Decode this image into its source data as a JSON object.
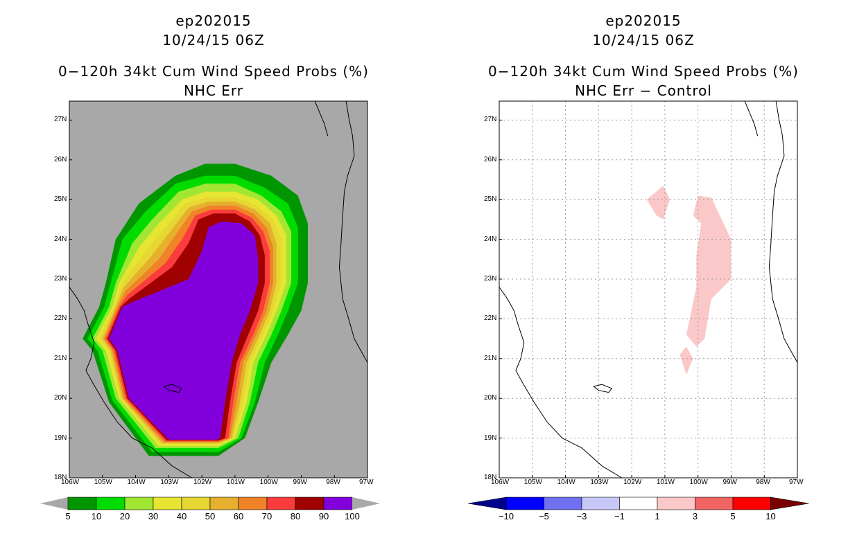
{
  "left_panel": {
    "title_line1": "ep202015",
    "title_line2": "10/24/15 06Z",
    "title_line3": "0−120h 34kt Cum Wind Speed Probs (%)",
    "title_line4": "NHC Err",
    "background_color": "#a8a8a8"
  },
  "right_panel": {
    "title_line1": "ep202015",
    "title_line2": "10/24/15 06Z",
    "title_line3": "0−120h 34kt Cum Wind Speed Probs (%)",
    "title_line4": "NHC Err − Control",
    "background_color": "#ffffff"
  },
  "axes": {
    "lat_labels": [
      "27N",
      "26N",
      "25N",
      "24N",
      "23N",
      "22N",
      "21N",
      "20N",
      "19N",
      "18N"
    ],
    "lon_labels": [
      "106W",
      "105W",
      "104W",
      "103W",
      "102W",
      "101W",
      "100W",
      "99W",
      "98W",
      "97W"
    ]
  },
  "left_colorbar": {
    "labels": [
      "5",
      "10",
      "20",
      "30",
      "40",
      "50",
      "60",
      "70",
      "80",
      "90",
      "100"
    ],
    "colors": [
      "#009600",
      "#00dc00",
      "#a0e632",
      "#e6e632",
      "#e6d732",
      "#e6af2d",
      "#f08228",
      "#fa3c3c",
      "#a00000",
      "#8200dc"
    ]
  },
  "right_colorbar": {
    "labels": [
      "−10",
      "−5",
      "−3",
      "−1",
      "1",
      "3",
      "5",
      "10"
    ],
    "colors": [
      "#00008c",
      "#0000ff",
      "#7070f0",
      "#c8c8f8",
      "#ffffff",
      "#fac8c8",
      "#f06464",
      "#ff0000",
      "#780000"
    ]
  },
  "chart_data": {
    "type": "heatmap",
    "map_extent": {
      "lon": [
        -106,
        -97
      ],
      "lat": [
        18,
        27.5
      ]
    },
    "left_field": {
      "name": "34kt cumulative wind speed probability (%)",
      "levels": [
        5,
        10,
        20,
        30,
        40,
        50,
        60,
        70,
        80,
        90,
        100
      ],
      "contours": [
        {
          "level": 5,
          "path": [
            [
              -104.6,
              24.0
            ],
            [
              -103.9,
              24.9
            ],
            [
              -102.8,
              25.6
            ],
            [
              -101.9,
              25.9
            ],
            [
              -101.0,
              25.9
            ],
            [
              -99.9,
              25.6
            ],
            [
              -99.1,
              25.1
            ],
            [
              -98.8,
              24.4
            ],
            [
              -98.8,
              22.9
            ],
            [
              -99.0,
              22.2
            ],
            [
              -99.4,
              21.6
            ],
            [
              -99.9,
              20.9
            ],
            [
              -100.3,
              19.9
            ],
            [
              -100.7,
              19.0
            ],
            [
              -101.5,
              18.55
            ],
            [
              -103.6,
              18.55
            ],
            [
              -104.8,
              19.9
            ],
            [
              -105.3,
              21.2
            ],
            [
              -105.6,
              21.5
            ],
            [
              -105.1,
              22.3
            ],
            [
              -104.9,
              22.9
            ]
          ]
        },
        {
          "level": 10,
          "path": [
            [
              -104.4,
              24.0
            ],
            [
              -103.7,
              24.7
            ],
            [
              -102.8,
              25.4
            ],
            [
              -101.9,
              25.6
            ],
            [
              -101.0,
              25.6
            ],
            [
              -100.1,
              25.3
            ],
            [
              -99.4,
              24.9
            ],
            [
              -99.1,
              24.3
            ],
            [
              -99.1,
              22.9
            ],
            [
              -99.4,
              22.2
            ],
            [
              -99.7,
              21.6
            ],
            [
              -100.1,
              20.9
            ],
            [
              -100.4,
              19.9
            ],
            [
              -100.8,
              19.0
            ],
            [
              -101.5,
              18.65
            ],
            [
              -103.5,
              18.65
            ],
            [
              -104.7,
              19.95
            ],
            [
              -105.15,
              21.2
            ],
            [
              -105.45,
              21.5
            ],
            [
              -104.95,
              22.3
            ],
            [
              -104.75,
              22.9
            ]
          ]
        },
        {
          "level": 20,
          "path": [
            [
              -104.1,
              23.9
            ],
            [
              -103.5,
              24.5
            ],
            [
              -102.7,
              25.2
            ],
            [
              -101.9,
              25.4
            ],
            [
              -101.0,
              25.4
            ],
            [
              -100.2,
              25.1
            ],
            [
              -99.6,
              24.7
            ],
            [
              -99.3,
              24.2
            ],
            [
              -99.3,
              22.9
            ],
            [
              -99.6,
              22.2
            ],
            [
              -99.9,
              21.6
            ],
            [
              -100.3,
              20.9
            ],
            [
              -100.55,
              19.9
            ],
            [
              -100.9,
              19.0
            ],
            [
              -101.5,
              18.75
            ],
            [
              -103.4,
              18.75
            ],
            [
              -104.6,
              20.0
            ],
            [
              -105.0,
              21.2
            ],
            [
              -105.3,
              21.5
            ],
            [
              -104.8,
              22.3
            ],
            [
              -104.6,
              22.9
            ]
          ]
        },
        {
          "level": 30,
          "path": [
            [
              -103.9,
              23.8
            ],
            [
              -103.3,
              24.4
            ],
            [
              -102.6,
              25.0
            ],
            [
              -101.9,
              25.2
            ],
            [
              -101.0,
              25.2
            ],
            [
              -100.3,
              25.0
            ],
            [
              -99.75,
              24.6
            ],
            [
              -99.45,
              24.1
            ],
            [
              -99.45,
              22.9
            ],
            [
              -99.75,
              22.2
            ],
            [
              -100.05,
              21.6
            ],
            [
              -100.45,
              20.9
            ],
            [
              -100.65,
              19.9
            ],
            [
              -101.0,
              19.0
            ],
            [
              -101.5,
              18.8
            ],
            [
              -103.3,
              18.8
            ],
            [
              -104.5,
              20.0
            ],
            [
              -104.9,
              21.2
            ],
            [
              -105.2,
              21.5
            ],
            [
              -104.7,
              22.3
            ],
            [
              -104.5,
              22.9
            ]
          ]
        },
        {
          "level": 40,
          "path": [
            [
              -103.7,
              23.7
            ],
            [
              -103.1,
              24.3
            ],
            [
              -102.5,
              24.9
            ],
            [
              -101.85,
              25.05
            ],
            [
              -101.0,
              25.05
            ],
            [
              -100.35,
              24.85
            ],
            [
              -99.85,
              24.5
            ],
            [
              -99.6,
              24.0
            ],
            [
              -99.6,
              22.9
            ],
            [
              -99.85,
              22.2
            ],
            [
              -100.15,
              21.6
            ],
            [
              -100.55,
              20.9
            ],
            [
              -100.75,
              19.9
            ],
            [
              -101.05,
              19.0
            ],
            [
              -101.5,
              18.85
            ],
            [
              -103.25,
              18.85
            ],
            [
              -104.45,
              20.0
            ],
            [
              -104.8,
              21.2
            ],
            [
              -105.1,
              21.5
            ],
            [
              -104.65,
              22.3
            ],
            [
              -104.4,
              22.9
            ]
          ]
        },
        {
          "level": 50,
          "path": [
            [
              -103.5,
              23.6
            ],
            [
              -102.95,
              24.2
            ],
            [
              -102.4,
              24.8
            ],
            [
              -101.8,
              24.95
            ],
            [
              -101.0,
              24.95
            ],
            [
              -100.4,
              24.75
            ],
            [
              -99.95,
              24.4
            ],
            [
              -99.75,
              23.9
            ],
            [
              -99.75,
              22.9
            ],
            [
              -99.95,
              22.2
            ],
            [
              -100.25,
              21.6
            ],
            [
              -100.65,
              20.9
            ],
            [
              -100.85,
              19.9
            ],
            [
              -101.1,
              19.0
            ],
            [
              -101.5,
              18.87
            ],
            [
              -103.2,
              18.87
            ],
            [
              -104.4,
              20.0
            ],
            [
              -104.75,
              21.2
            ],
            [
              -105.0,
              21.5
            ],
            [
              -104.6,
              22.3
            ],
            [
              -104.35,
              22.8
            ]
          ]
        },
        {
          "level": 60,
          "path": [
            [
              -103.3,
              23.5
            ],
            [
              -102.8,
              24.1
            ],
            [
              -102.3,
              24.7
            ],
            [
              -101.75,
              24.85
            ],
            [
              -101.0,
              24.85
            ],
            [
              -100.45,
              24.65
            ],
            [
              -100.05,
              24.3
            ],
            [
              -99.85,
              23.8
            ],
            [
              -99.85,
              22.9
            ],
            [
              -100.05,
              22.2
            ],
            [
              -100.35,
              21.6
            ],
            [
              -100.75,
              20.9
            ],
            [
              -100.95,
              19.9
            ],
            [
              -101.15,
              19.0
            ],
            [
              -101.5,
              18.9
            ],
            [
              -103.15,
              18.9
            ],
            [
              -104.35,
              20.0
            ],
            [
              -104.7,
              21.2
            ],
            [
              -104.95,
              21.5
            ],
            [
              -104.55,
              22.3
            ],
            [
              -104.3,
              22.7
            ]
          ]
        },
        {
          "level": 70,
          "path": [
            [
              -103.1,
              23.4
            ],
            [
              -102.6,
              24.0
            ],
            [
              -102.2,
              24.6
            ],
            [
              -101.7,
              24.75
            ],
            [
              -101.0,
              24.75
            ],
            [
              -100.5,
              24.55
            ],
            [
              -100.15,
              24.2
            ],
            [
              -99.95,
              23.7
            ],
            [
              -99.95,
              22.9
            ],
            [
              -100.15,
              22.2
            ],
            [
              -100.45,
              21.6
            ],
            [
              -100.85,
              20.9
            ],
            [
              -101.05,
              19.9
            ],
            [
              -101.2,
              19.0
            ],
            [
              -101.5,
              18.92
            ],
            [
              -103.1,
              18.92
            ],
            [
              -104.3,
              20.0
            ],
            [
              -104.65,
              21.2
            ],
            [
              -104.9,
              21.5
            ],
            [
              -104.5,
              22.3
            ],
            [
              -104.25,
              22.6
            ]
          ]
        },
        {
          "level": 80,
          "path": [
            [
              -102.9,
              23.3
            ],
            [
              -102.4,
              23.9
            ],
            [
              -102.1,
              24.5
            ],
            [
              -101.65,
              24.65
            ],
            [
              -101.0,
              24.65
            ],
            [
              -100.55,
              24.45
            ],
            [
              -100.25,
              24.1
            ],
            [
              -100.1,
              23.6
            ],
            [
              -100.1,
              22.9
            ],
            [
              -100.3,
              22.2
            ],
            [
              -100.6,
              21.6
            ],
            [
              -100.95,
              20.9
            ],
            [
              -101.15,
              19.9
            ],
            [
              -101.3,
              19.0
            ],
            [
              -101.5,
              18.94
            ],
            [
              -103.05,
              18.94
            ],
            [
              -104.25,
              20.0
            ],
            [
              -104.6,
              21.2
            ],
            [
              -104.85,
              21.5
            ],
            [
              -104.45,
              22.3
            ],
            [
              -104.2,
              22.5
            ]
          ]
        },
        {
          "level": 90,
          "path": [
            [
              -102.4,
              23.0
            ],
            [
              -102.0,
              23.7
            ],
            [
              -101.8,
              24.3
            ],
            [
              -101.4,
              24.45
            ],
            [
              -100.8,
              24.4
            ],
            [
              -100.4,
              24.1
            ],
            [
              -100.3,
              23.5
            ],
            [
              -100.3,
              22.9
            ],
            [
              -100.55,
              22.2
            ],
            [
              -100.85,
              21.6
            ],
            [
              -101.1,
              20.9
            ],
            [
              -101.3,
              19.9
            ],
            [
              -101.45,
              19.0
            ],
            [
              -101.55,
              18.96
            ],
            [
              -103.0,
              18.96
            ],
            [
              -104.2,
              20.0
            ],
            [
              -104.55,
              21.2
            ],
            [
              -104.8,
              21.5
            ],
            [
              -104.4,
              22.3
            ],
            [
              -104.15,
              22.4
            ]
          ]
        }
      ]
    },
    "right_field": {
      "name": "NHC Err minus Control difference (%)",
      "levels": [
        -10,
        -5,
        -3,
        -1,
        1,
        3,
        5,
        10
      ],
      "regions": [
        {
          "level": 1,
          "path": [
            [
              -101.55,
              25.0
            ],
            [
              -101.05,
              25.35
            ],
            [
              -100.85,
              25.0
            ],
            [
              -101.05,
              24.5
            ],
            [
              -101.25,
              24.6
            ]
          ]
        },
        {
          "level": 1,
          "path": [
            [
              -100.0,
              25.1
            ],
            [
              -99.6,
              25.05
            ],
            [
              -99.0,
              24.0
            ],
            [
              -99.0,
              23.0
            ],
            [
              -99.6,
              22.5
            ],
            [
              -99.8,
              21.5
            ],
            [
              -100.05,
              21.3
            ],
            [
              -100.35,
              21.6
            ],
            [
              -100.05,
              22.8
            ],
            [
              -100.05,
              23.6
            ],
            [
              -99.9,
              24.4
            ],
            [
              -100.15,
              24.6
            ]
          ]
        },
        {
          "level": 1,
          "path": [
            [
              -100.55,
              21.1
            ],
            [
              -100.35,
              21.3
            ],
            [
              -100.15,
              21.0
            ],
            [
              -100.35,
              20.6
            ]
          ]
        }
      ]
    }
  }
}
